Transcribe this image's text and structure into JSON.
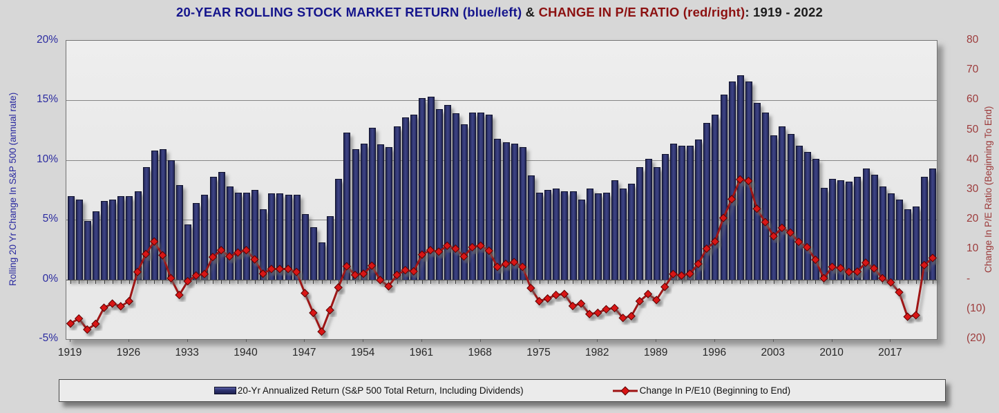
{
  "title": {
    "part_blue": "20-YEAR ROLLING STOCK MARKET RETURN (blue/left)",
    "part_amp": " & ",
    "part_red": "CHANGE IN P/E RATIO (red/right)",
    "part_suffix": ": 1919 - 2022"
  },
  "y_left": {
    "title": "Rolling 20 Yr Change In S&P 500 (annual rate)",
    "ticks": [
      "20%",
      "15%",
      "10%",
      "5%",
      "0%",
      "-5%"
    ],
    "tick_values": [
      20,
      15,
      10,
      5,
      0,
      -5
    ]
  },
  "y_right": {
    "title": "Change In P/E Ratio (Beginning To End)",
    "ticks": [
      "80",
      "70",
      "60",
      "50",
      "40",
      "30",
      "20",
      "10",
      "-",
      "(10)",
      "(20)"
    ],
    "tick_values": [
      80,
      70,
      60,
      50,
      40,
      30,
      20,
      10,
      0,
      -10,
      -20
    ]
  },
  "x_axis": {
    "labels": [
      "1919",
      "1926",
      "1933",
      "1940",
      "1947",
      "1954",
      "1961",
      "1968",
      "1975",
      "1982",
      "1989",
      "1996",
      "2003",
      "2010",
      "2017"
    ]
  },
  "legend": {
    "bar_label": "20-Yr Annualized Return (S&P 500 Total Return, Including Dividends)",
    "line_label": "Change In P/E10 (Beginning to End)"
  },
  "colors": {
    "title_blue": "#15158c",
    "title_red": "#8c1111",
    "bar_fill": "#31366e",
    "bar_edge": "#13152e",
    "line_stroke": "#9e1212",
    "diamond_fill": "#d81414",
    "left_axis_text": "#2a2aa0",
    "right_axis_text": "#9c3a3a",
    "plot_bg": "#e9e9e9",
    "figure_bg": "#d7d7d7",
    "gridline": "#858585"
  },
  "chart_data": {
    "type": "bar",
    "title": "20-YEAR ROLLING STOCK MARKET RETURN (blue/left) & CHANGE IN P/E RATIO (red/right): 1919 - 2022",
    "xlabel": "",
    "ylabel_left": "Rolling 20 Yr Change In S&P 500 (annual rate)",
    "ylabel_right": "Change In P/E Ratio (Beginning To End)",
    "ylim_left": [
      -5,
      20
    ],
    "ylim_right": [
      -20,
      80
    ],
    "grid_values_left": [
      15,
      10,
      5
    ],
    "legend_position": "bottom",
    "x": [
      1919,
      1920,
      1921,
      1922,
      1923,
      1924,
      1925,
      1926,
      1927,
      1928,
      1929,
      1930,
      1931,
      1932,
      1933,
      1934,
      1935,
      1936,
      1937,
      1938,
      1939,
      1940,
      1941,
      1942,
      1943,
      1944,
      1945,
      1946,
      1947,
      1948,
      1949,
      1950,
      1951,
      1952,
      1953,
      1954,
      1955,
      1956,
      1957,
      1958,
      1959,
      1960,
      1961,
      1962,
      1963,
      1964,
      1965,
      1966,
      1967,
      1968,
      1969,
      1970,
      1971,
      1972,
      1973,
      1974,
      1975,
      1976,
      1977,
      1978,
      1979,
      1980,
      1981,
      1982,
      1983,
      1984,
      1985,
      1986,
      1987,
      1988,
      1989,
      1990,
      1991,
      1992,
      1993,
      1994,
      1995,
      1996,
      1997,
      1998,
      1999,
      2000,
      2001,
      2002,
      2003,
      2004,
      2005,
      2006,
      2007,
      2008,
      2009,
      2010,
      2011,
      2012,
      2013,
      2014,
      2015,
      2016,
      2017,
      2018,
      2019,
      2020,
      2021,
      2022
    ],
    "series": [
      {
        "name": "20-Yr Annualized Return (S&P 500 Total Return, Including Dividends)",
        "type": "bar",
        "axis": "left",
        "unit": "%",
        "values": [
          7.0,
          6.7,
          4.9,
          5.7,
          6.6,
          6.7,
          7.0,
          7.0,
          7.4,
          9.4,
          10.8,
          10.9,
          10.0,
          7.9,
          4.6,
          6.4,
          7.1,
          8.6,
          9.0,
          7.8,
          7.3,
          7.3,
          7.5,
          5.9,
          7.2,
          7.2,
          7.1,
          7.1,
          5.5,
          4.4,
          3.1,
          5.3,
          8.4,
          12.3,
          10.9,
          11.4,
          12.7,
          11.3,
          11.1,
          12.8,
          13.6,
          13.8,
          15.2,
          15.3,
          14.3,
          14.6,
          13.9,
          13.0,
          14.0,
          14.0,
          13.8,
          11.8,
          11.5,
          11.4,
          11.1,
          8.7,
          7.3,
          7.5,
          7.6,
          7.4,
          7.4,
          6.7,
          7.6,
          7.2,
          7.3,
          8.3,
          7.6,
          8.0,
          9.4,
          10.1,
          9.4,
          10.5,
          11.4,
          11.2,
          11.2,
          11.7,
          13.1,
          13.8,
          15.5,
          16.6,
          17.1,
          16.6,
          14.8,
          14.0,
          12.1,
          12.8,
          12.2,
          11.2,
          10.7,
          10.1,
          7.7,
          8.4,
          8.3,
          8.2,
          8.6,
          9.3,
          8.8,
          7.8,
          7.2,
          6.7,
          5.9,
          6.1,
          8.6,
          9.3
        ]
      },
      {
        "name": "Change In P/E10 (Beginning to End)",
        "type": "line",
        "axis": "right",
        "marker": "diamond",
        "values": [
          -14.8,
          -13.1,
          -16.8,
          -14.9,
          -9.5,
          -8.1,
          -9.0,
          -7.3,
          2.5,
          8.5,
          12.7,
          8.1,
          0.4,
          -5.2,
          -0.6,
          1.3,
          1.8,
          7.5,
          9.8,
          7.7,
          9.0,
          9.8,
          6.7,
          1.9,
          3.5,
          3.5,
          3.5,
          2.5,
          -4.6,
          -11.2,
          -17.5,
          -10.3,
          -2.7,
          4.4,
          1.5,
          1.9,
          4.6,
          -0.2,
          -2.3,
          1.5,
          3.1,
          2.7,
          8.3,
          9.8,
          9.3,
          11.3,
          10.3,
          7.7,
          10.8,
          11.3,
          9.6,
          4.2,
          5.2,
          5.8,
          4.2,
          -2.9,
          -7.3,
          -6.4,
          -5.2,
          -4.9,
          -8.9,
          -8.1,
          -11.6,
          -11.2,
          -10.0,
          -9.6,
          -12.9,
          -12.3,
          -7.3,
          -4.9,
          -6.9,
          -2.5,
          1.8,
          1.3,
          1.9,
          5.2,
          10.3,
          12.7,
          20.6,
          26.9,
          33.5,
          33.0,
          23.7,
          19.2,
          14.5,
          17.3,
          15.7,
          12.6,
          10.8,
          6.6,
          0.4,
          4.2,
          3.8,
          2.5,
          2.6,
          5.6,
          3.7,
          0.4,
          -1.0,
          -4.3,
          -12.5,
          -12.0,
          4.8,
          7.2
        ]
      }
    ]
  }
}
